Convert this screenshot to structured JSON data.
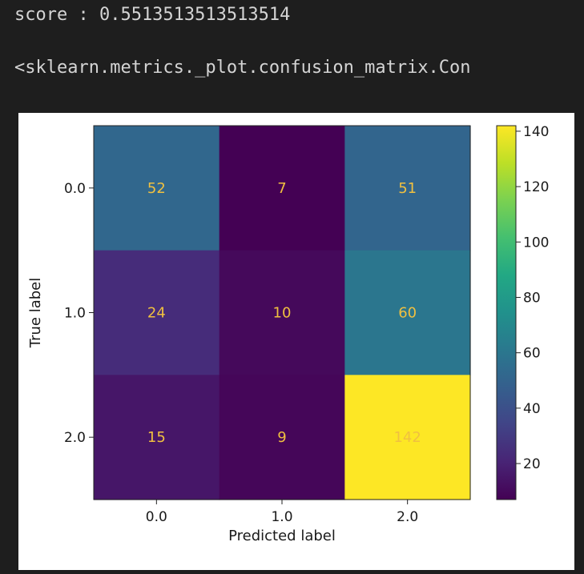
{
  "output": {
    "score_line": "score : 0.5513513513513514",
    "repr_line": "<sklearn.metrics._plot.confusion_matrix.Con"
  },
  "chart_data": {
    "type": "heatmap",
    "colormap": "viridis",
    "row_labels": [
      "0.0",
      "1.0",
      "2.0"
    ],
    "col_labels": [
      "0.0",
      "1.0",
      "2.0"
    ],
    "values": [
      [
        52,
        7,
        51
      ],
      [
        24,
        10,
        60
      ],
      [
        15,
        9,
        142
      ]
    ],
    "xlabel": "Predicted label",
    "ylabel": "True label",
    "colorbar": {
      "range": [
        7,
        142
      ],
      "ticks": [
        20,
        40,
        60,
        80,
        100,
        120,
        140
      ]
    },
    "text_color": "#f0c040"
  }
}
